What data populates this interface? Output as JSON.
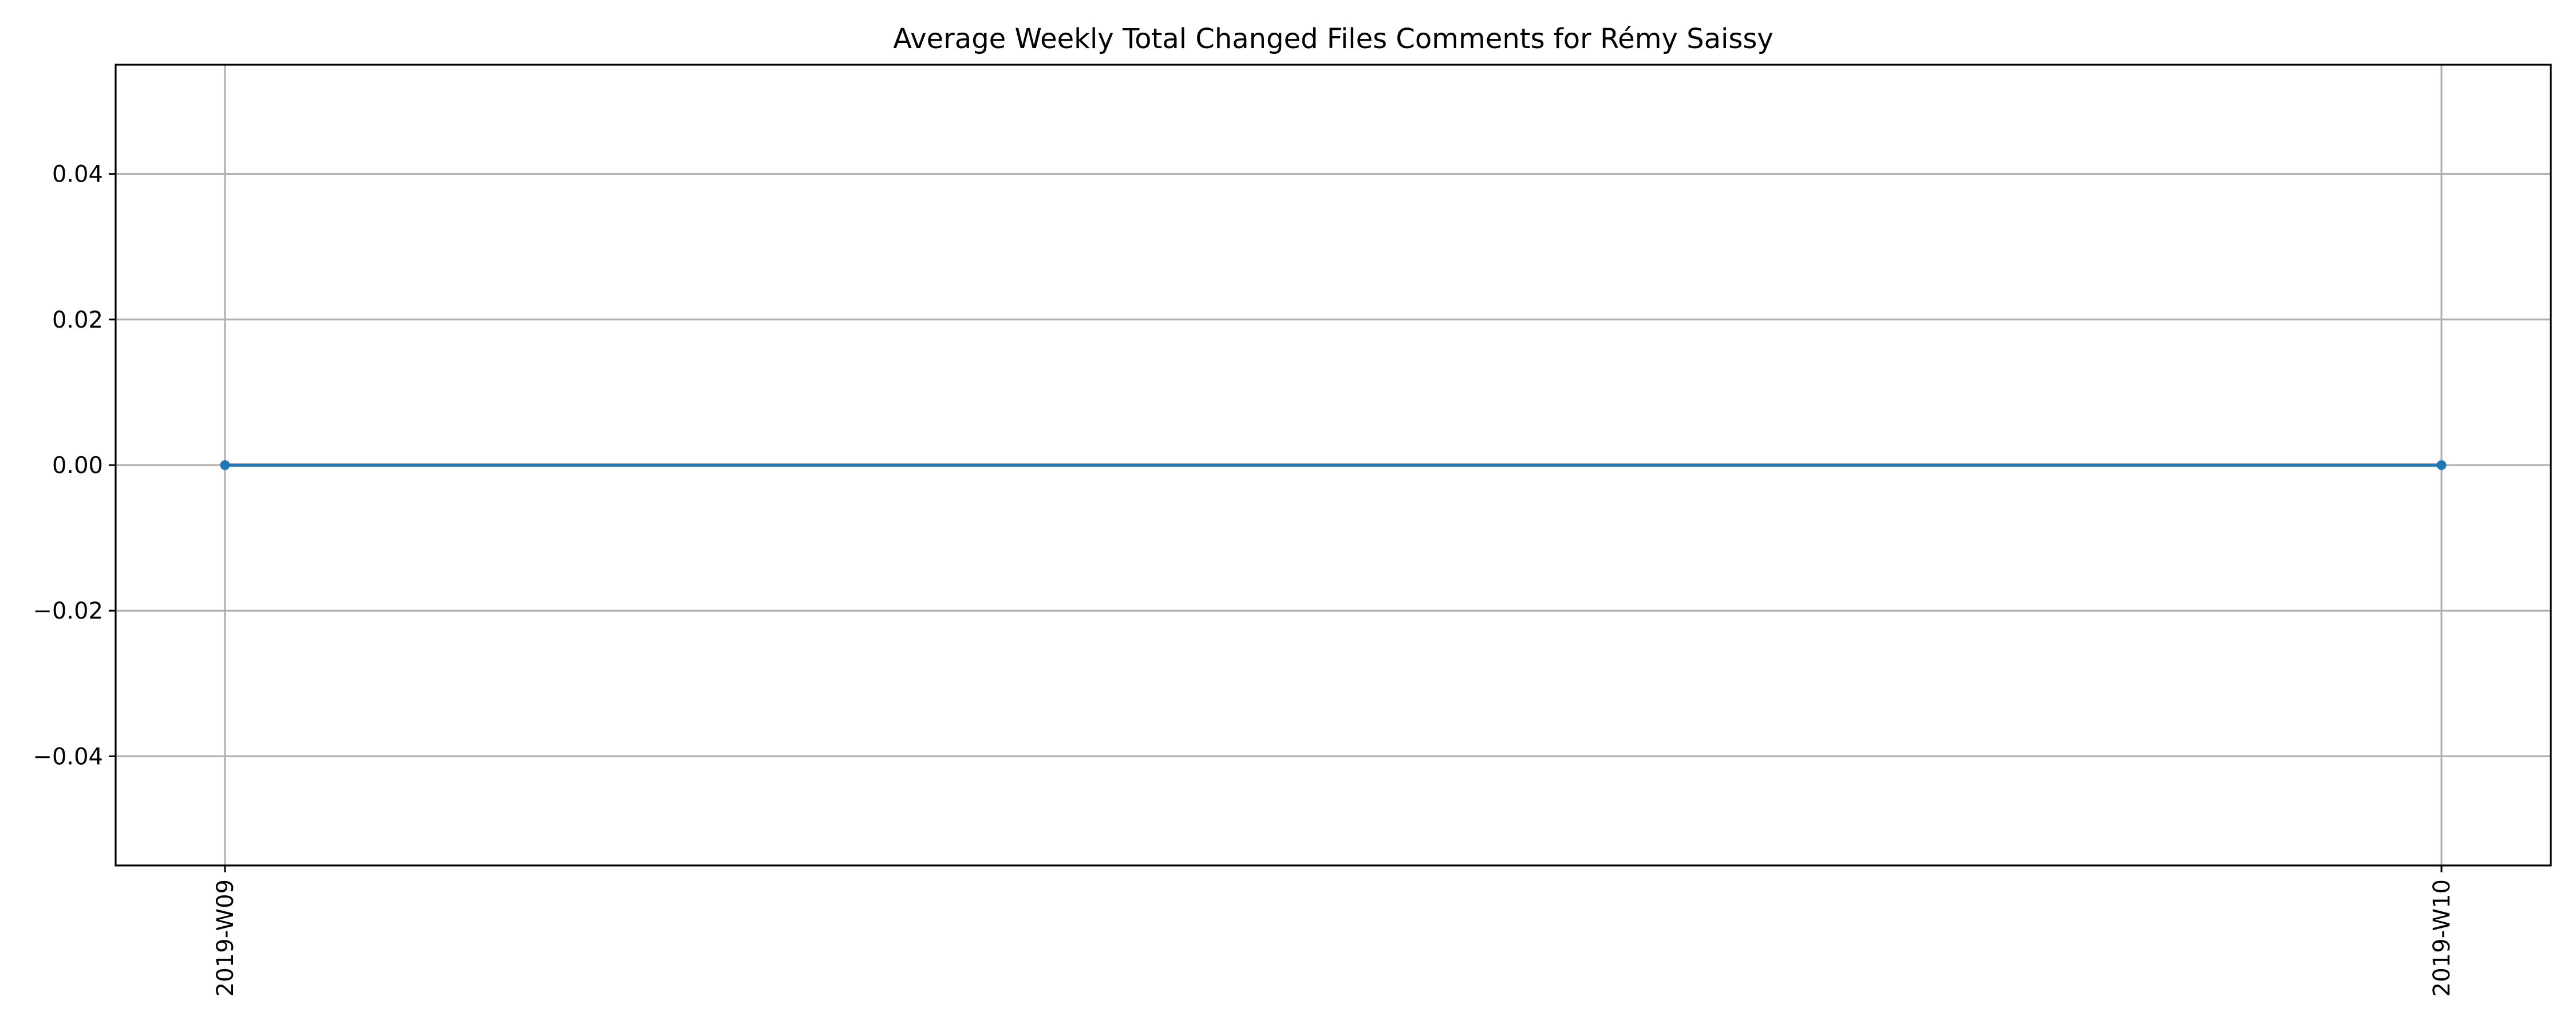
{
  "chart_data": {
    "type": "line",
    "title": "Average Weekly Total Changed Files Comments for Rémy Saissy",
    "xlabel": "",
    "ylabel": "",
    "categories": [
      "2019-W09",
      "2019-W10"
    ],
    "series": [
      {
        "name": "Average Weekly Total Changed Files Comments",
        "values": [
          0.0,
          0.0
        ],
        "color": "#1f77b4",
        "marker": "circle"
      }
    ],
    "ylim": [
      -0.055,
      0.055
    ],
    "yticks": [
      -0.04,
      -0.02,
      0.0,
      0.02,
      0.04
    ],
    "ytick_labels": [
      "−0.04",
      "−0.02",
      "0.00",
      "0.02",
      "0.04"
    ],
    "xtick_labels": [
      "2019-W09",
      "2019-W10"
    ],
    "xtick_rotation": 90,
    "grid": true,
    "legend": "none"
  }
}
